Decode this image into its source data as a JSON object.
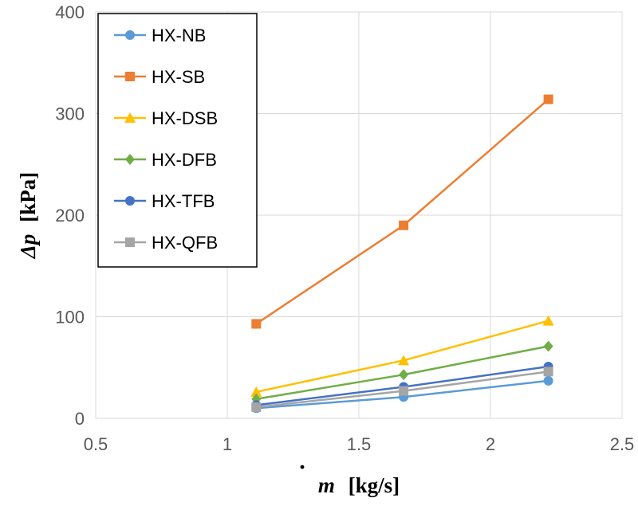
{
  "chart_data": {
    "type": "line",
    "title": "",
    "xlabel": {
      "symbol": "m",
      "dot": "·",
      "unit": "[kg/s]"
    },
    "ylabel": {
      "symbol": "Δp",
      "unit": "[kPa]"
    },
    "xlim": [
      0.5,
      2.5
    ],
    "ylim": [
      0,
      400
    ],
    "xticks": [
      "0.5",
      "1",
      "1.5",
      "2",
      "2.5"
    ],
    "yticks": [
      "0",
      "100",
      "200",
      "300",
      "400"
    ],
    "xtick_values": [
      0.5,
      1,
      1.5,
      2,
      2.5
    ],
    "ytick_values": [
      0,
      100,
      200,
      300,
      400
    ],
    "grid": true,
    "legend_position": "top-left",
    "x": [
      1.11,
      1.67,
      2.22
    ],
    "series": [
      {
        "name": "HX-NB",
        "color": "#5B9BD5",
        "marker": "circle",
        "values": [
          10,
          21,
          37
        ]
      },
      {
        "name": "HX-SB",
        "color": "#ED7D31",
        "marker": "square",
        "values": [
          93,
          190,
          314
        ]
      },
      {
        "name": "HX-DSB",
        "color": "#FFC000",
        "marker": "triangle",
        "values": [
          26,
          57,
          96
        ]
      },
      {
        "name": "HX-DFB",
        "color": "#70AD47",
        "marker": "diamond",
        "values": [
          19,
          43,
          71
        ]
      },
      {
        "name": "HX-TFB",
        "color": "#4472C4",
        "marker": "circle",
        "values": [
          13,
          31,
          51
        ]
      },
      {
        "name": "HX-QFB",
        "color": "#A5A5A5",
        "marker": "square",
        "values": [
          11,
          27,
          46
        ]
      }
    ]
  }
}
